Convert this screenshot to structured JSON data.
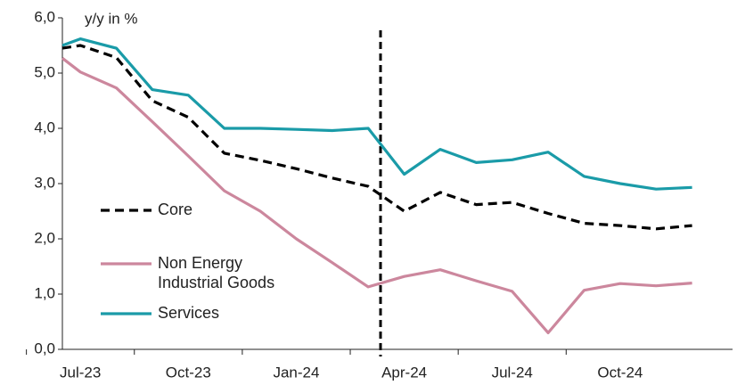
{
  "chart_data": {
    "type": "line",
    "annotation": "y/y in %",
    "categories": [
      null,
      "Jul-23",
      null,
      null,
      "Oct-23",
      null,
      null,
      "Jan-24",
      null,
      null,
      "Apr-24",
      null,
      null,
      "Jul-24",
      null,
      null,
      "Oct-24",
      null,
      null
    ],
    "series": [
      {
        "name": "Core",
        "color": "#000000",
        "dash": true,
        "values": [
          5.45,
          5.5,
          5.28,
          4.5,
          4.2,
          3.55,
          3.42,
          3.27,
          3.1,
          2.95,
          2.5,
          2.84,
          2.62,
          2.66,
          2.46,
          2.28,
          2.24,
          2.18,
          2.24
        ]
      },
      {
        "name": "Non Energy Industrial Goods",
        "color": "#cc879d",
        "dash": false,
        "values": [
          5.27,
          5.02,
          4.73,
          4.12,
          3.5,
          2.87,
          2.5,
          2.0,
          1.57,
          1.13,
          1.32,
          1.44,
          1.24,
          1.05,
          0.3,
          1.07,
          1.19,
          1.15,
          1.2
        ]
      },
      {
        "name": "Services",
        "color": "#1a9ba8",
        "dash": false,
        "values": [
          5.5,
          5.62,
          5.45,
          4.7,
          4.6,
          4.0,
          4.0,
          3.98,
          3.96,
          4.0,
          3.17,
          3.62,
          3.38,
          3.43,
          3.57,
          3.13,
          3.0,
          2.9,
          2.93
        ]
      }
    ],
    "ylim": [
      0,
      6
    ],
    "yticks": [
      {
        "value": 0,
        "label": "0,0"
      },
      {
        "value": 1,
        "label": "1,0"
      },
      {
        "value": 2,
        "label": "2,0"
      },
      {
        "value": 3,
        "label": "3,0"
      },
      {
        "value": 4,
        "label": "4,0"
      },
      {
        "value": 5,
        "label": "5,0"
      },
      {
        "value": 6,
        "label": "6,0"
      }
    ],
    "grid": false
  }
}
